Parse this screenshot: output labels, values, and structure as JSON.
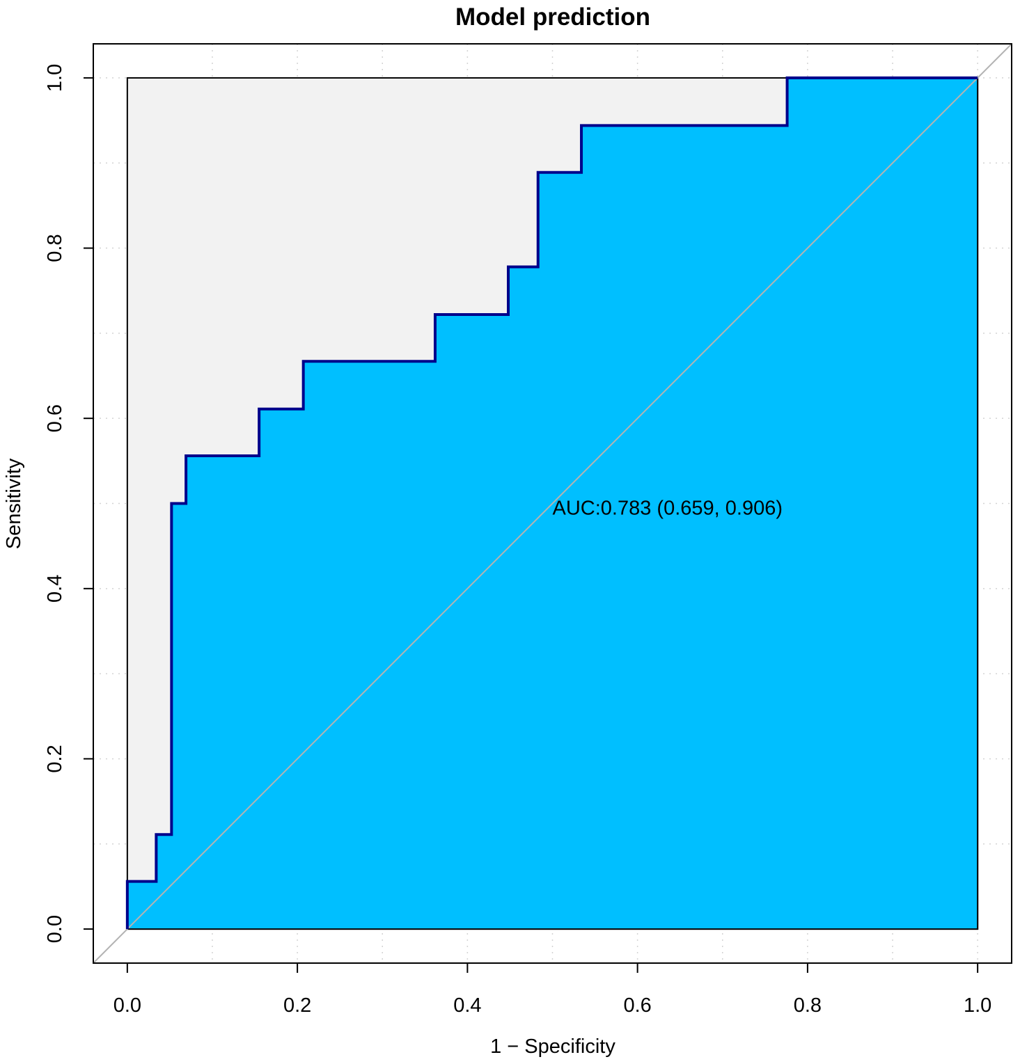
{
  "chart_data": {
    "type": "line",
    "title": "Model prediction",
    "xlabel": "1 − Specificity",
    "ylabel": "Sensitivity",
    "xlim": [
      -0.04,
      1.04
    ],
    "ylim": [
      -0.04,
      1.04
    ],
    "xticks": [
      0.0,
      0.2,
      0.4,
      0.6,
      0.8,
      1.0
    ],
    "yticks": [
      0.0,
      0.2,
      0.4,
      0.6,
      0.8,
      1.0
    ],
    "xtick_labels": [
      "0.0",
      "0.2",
      "0.4",
      "0.6",
      "0.8",
      "1.0"
    ],
    "ytick_labels": [
      "0.0",
      "0.2",
      "0.4",
      "0.6",
      "0.8",
      "1.0"
    ],
    "grid": true,
    "grid_style": "dotted",
    "reference_line": {
      "from": [
        -0.04,
        -0.04
      ],
      "to": [
        1.04,
        1.04
      ],
      "color": "#b3b3b3"
    },
    "annotation": {
      "text": "AUC:0.783 (0.659, 0.906)",
      "x": 0.5,
      "y": 0.487
    },
    "colors": {
      "curve": "#00008b",
      "auc_fill": "#00bfff",
      "polygon_fill": "#f2f2f2",
      "reference": "#b3b3b3",
      "grid": "#d3d3d3"
    },
    "series": [
      {
        "x": [
          0.0,
          0.0,
          0.034,
          0.034,
          0.052,
          0.052,
          0.069,
          0.069,
          0.155,
          0.155,
          0.207,
          0.207,
          0.362,
          0.362,
          0.448,
          0.448,
          0.483,
          0.483,
          0.534,
          0.534,
          0.776,
          0.776,
          1.0
        ],
        "y": [
          0.0,
          0.056,
          0.056,
          0.111,
          0.111,
          0.5,
          0.5,
          0.556,
          0.556,
          0.611,
          0.611,
          0.667,
          0.667,
          0.722,
          0.722,
          0.778,
          0.778,
          0.889,
          0.889,
          0.944,
          0.944,
          1.0,
          1.0
        ]
      }
    ]
  }
}
